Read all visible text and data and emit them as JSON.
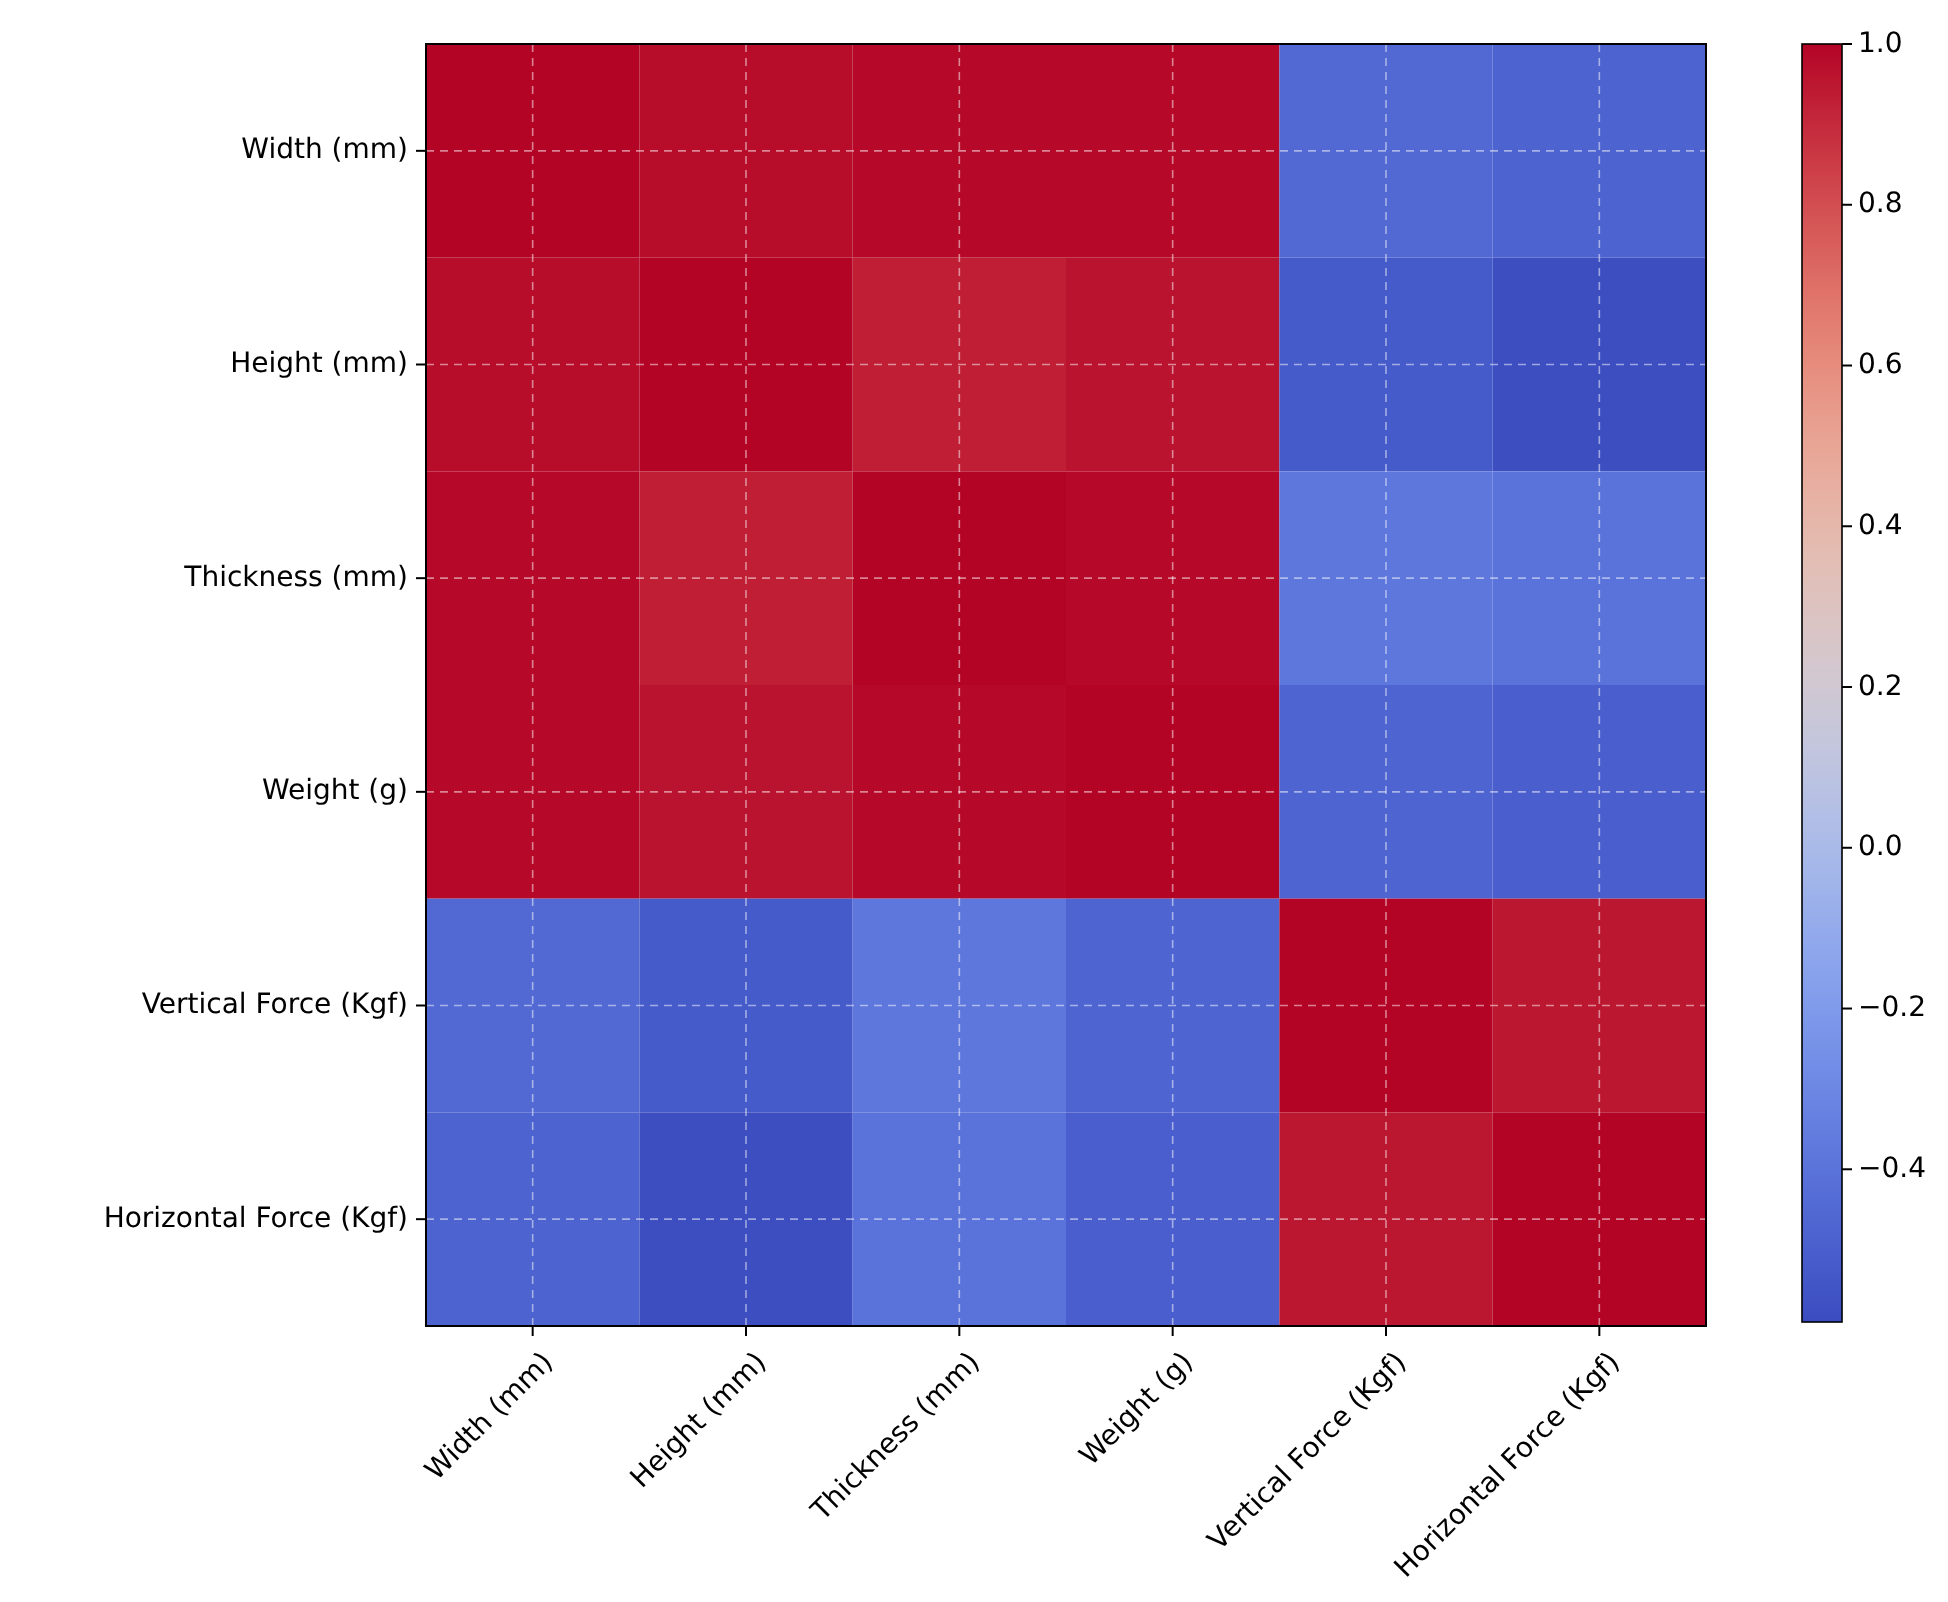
{
  "chart_data": {
    "type": "heatmap",
    "categories": [
      "Width (mm)",
      "Height (mm)",
      "Thickness (mm)",
      "Weight (g)",
      "Vertical Force (Kgf)",
      "Horizontal Force (Kgf)"
    ],
    "y_categories": [
      "Width (mm)",
      "Height (mm)",
      "Thickness (mm)",
      "Weight (g)",
      "Vertical Force (Kgf)",
      "Horizontal Force (Kgf)"
    ],
    "cells": [
      [
        1.0,
        0.98,
        0.99,
        0.99,
        -0.45,
        -0.48
      ],
      [
        0.98,
        1.0,
        0.93,
        0.96,
        -0.52,
        -0.58
      ],
      [
        0.99,
        0.93,
        1.0,
        0.99,
        -0.38,
        -0.4
      ],
      [
        0.99,
        0.96,
        0.99,
        1.0,
        -0.47,
        -0.5
      ],
      [
        -0.45,
        -0.52,
        -0.38,
        -0.47,
        1.0,
        0.95
      ],
      [
        -0.48,
        -0.58,
        -0.4,
        -0.5,
        0.95,
        1.0
      ]
    ],
    "clim": [
      -0.59,
      1.0
    ],
    "cticks": [
      {
        "value": -0.4,
        "label": "−0.4"
      },
      {
        "value": -0.2,
        "label": "−0.2"
      },
      {
        "value": 0,
        "label": "0.0"
      },
      0.2,
      0.4,
      0.6,
      0.8,
      {
        "value": 1,
        "label": "1.0"
      }
    ],
    "grid": true
  }
}
